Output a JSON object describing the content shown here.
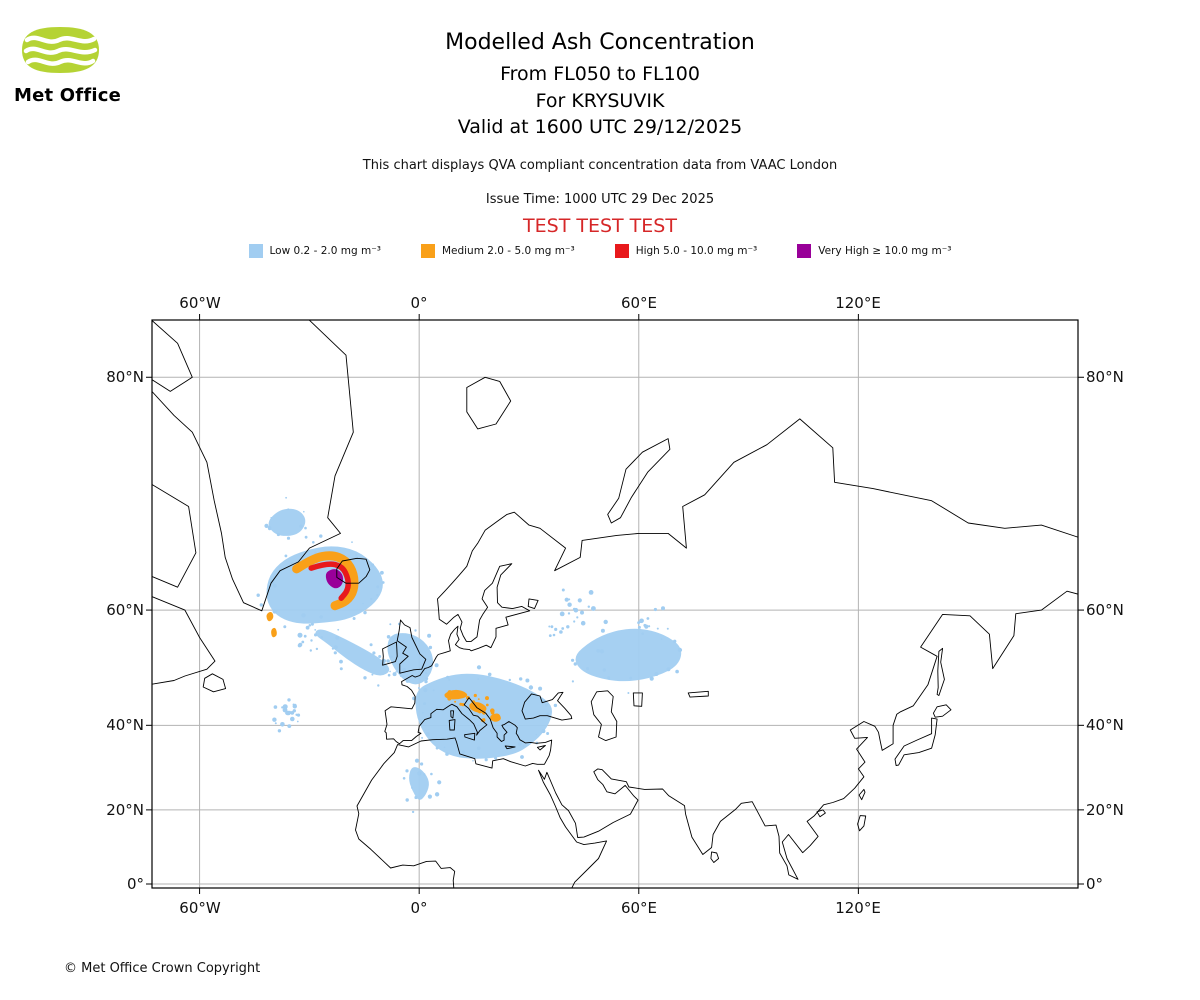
{
  "header": {
    "logo": {
      "brand": "Met Office"
    },
    "title": "Modelled Ash Concentration",
    "subtitles": [
      "From FL050 to FL100",
      "For KRYSUVIK",
      "Valid at 1600 UTC 29/12/2025"
    ],
    "description": "This chart displays QVA compliant concentration data from VAAC London",
    "issue_time": "Issue Time: 1000 UTC 29 Dec 2025",
    "test_banner": "TEST TEST TEST"
  },
  "legend": {
    "items": [
      {
        "name": "low",
        "label": "Low 0.2 - 2.0 mg m⁻³",
        "color": "#a1cdf1"
      },
      {
        "name": "medium",
        "label": "Medium 2.0 - 5.0 mg m⁻³",
        "color": "#f9a019"
      },
      {
        "name": "high",
        "label": "High 5.0 - 10.0 mg m⁻³",
        "color": "#e8191c"
      },
      {
        "name": "very_high",
        "label": "Very High ≥ 10.0 mg m⁻³",
        "color": "#990099"
      }
    ]
  },
  "map": {
    "projection": "Mercator",
    "lon_range_deg": [
      -73,
      180
    ],
    "lat_range_deg": [
      -1.2,
      84.6
    ],
    "x_ticks": [
      {
        "label": "60°W",
        "lon": -60
      },
      {
        "label": "0°",
        "lon": 0
      },
      {
        "label": "60°E",
        "lon": 60
      },
      {
        "label": "120°E",
        "lon": 120
      }
    ],
    "y_ticks": [
      {
        "label": "80°N",
        "lat": 80
      },
      {
        "label": "60°N",
        "lat": 60
      },
      {
        "label": "40°N",
        "lat": 40
      },
      {
        "label": "20°N",
        "lat": 20
      },
      {
        "label": "0°",
        "lat": 0
      }
    ],
    "ash_plumes": {
      "source_volcano": "KRYSUVIK",
      "flight_levels": "FL050 to FL100",
      "valid_time": "1600 UTC 29/12/2025",
      "levels": [
        {
          "level": "Low",
          "concentration": "0.2 - 2.0 mg m⁻³",
          "areas": [
            "large swirl around Iceland and SE Greenland",
            "arm across N Atlantic to UK and North Sea",
            "broad area over central and southern Europe, Mediterranean and North African coast",
            "band over north Caspian / Kazakhstan",
            "patch off west Greenland",
            "scattered specks mid-Atlantic and NE of White Sea"
          ]
        },
        {
          "level": "Medium",
          "concentration": "2.0 - 5.0 mg m⁻³",
          "areas": [
            "arc hugging SE Greenland coast west of Iceland",
            "two small patches south of Greenland",
            "patches over the Alps and Balkans"
          ]
        },
        {
          "level": "High",
          "concentration": "5.0 - 10.0 mg m⁻³",
          "areas": [
            "narrow arc between Iceland and Greenland"
          ]
        },
        {
          "level": "Very High",
          "concentration": "≥ 10.0 mg m⁻³",
          "areas": [
            "compact area at Krysuvik, SW Iceland"
          ]
        }
      ]
    }
  },
  "footer": {
    "copyright": "© Met Office Crown Copyright"
  }
}
